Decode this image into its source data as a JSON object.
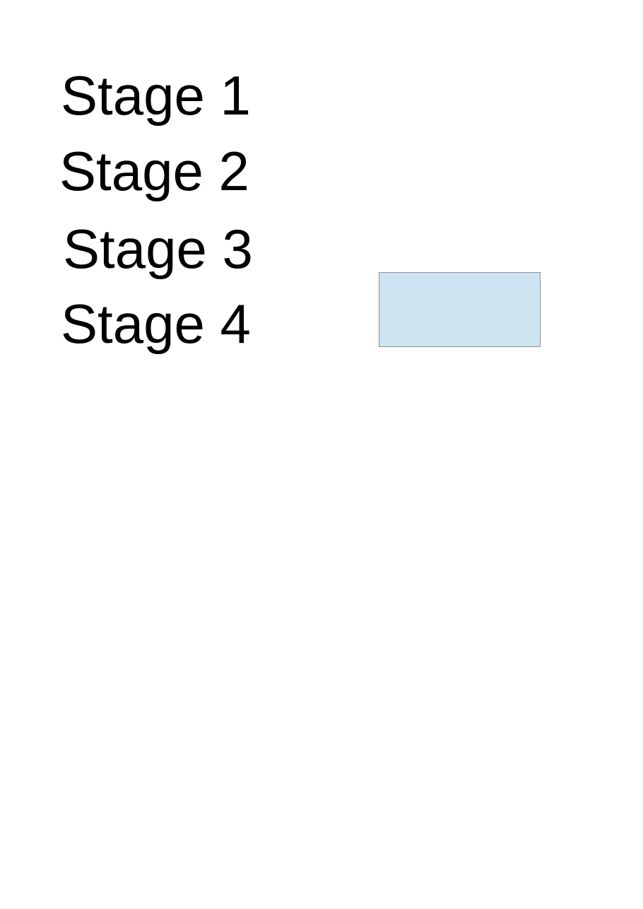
{
  "stages": [
    {
      "label": "Stage 1"
    },
    {
      "label": "Stage 2"
    },
    {
      "label": "Stage 3"
    },
    {
      "label": "Stage 4"
    }
  ],
  "shape": {
    "fill_color": "#cfe4f3",
    "border_color": "#8a8f94"
  }
}
